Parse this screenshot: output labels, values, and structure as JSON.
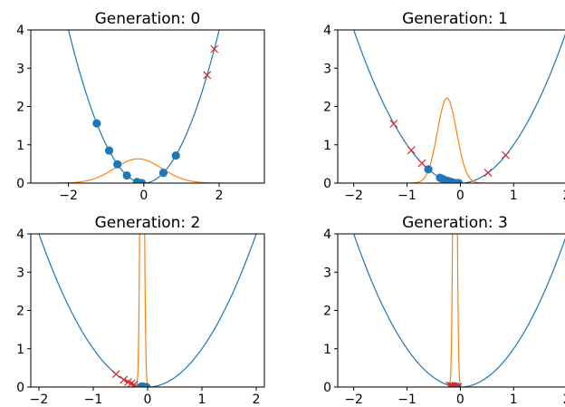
{
  "colors": {
    "parabola": "#1f77b4",
    "density": "#ff7f0e",
    "marker": "#d62728",
    "axes": "#000000",
    "background": "#ffffff"
  },
  "chart_data": [
    {
      "type": "line",
      "title": "Generation: 0",
      "xlim": [
        -3.0,
        3.2
      ],
      "ylim": [
        0,
        4
      ],
      "xticks": [
        -2,
        0,
        2
      ],
      "yticks": [
        0,
        1,
        2,
        3,
        4
      ],
      "curve": "y = x^2",
      "density": {
        "mean": -0.15,
        "std": 0.63
      },
      "selected_points": {
        "marker": "circle",
        "x": [
          -1.25,
          -0.92,
          -0.7,
          -0.45,
          -0.18,
          -0.05,
          0.52,
          0.85
        ],
        "y": [
          1.56,
          0.85,
          0.49,
          0.2,
          0.03,
          0.0,
          0.27,
          0.72
        ]
      },
      "rejected_points": {
        "marker": "x",
        "x": [
          1.68,
          1.87
        ],
        "y": [
          2.82,
          3.5
        ]
      },
      "grid": false
    },
    {
      "type": "line",
      "title": "Generation: 1",
      "xlim": [
        -2.3,
        2.1
      ],
      "ylim": [
        0,
        4
      ],
      "xticks": [
        -2,
        -1,
        0,
        1,
        2
      ],
      "yticks": [
        0,
        1,
        2,
        3,
        4
      ],
      "curve": "y = x^2",
      "density": {
        "mean": -0.25,
        "std": 0.18
      },
      "selected_points": {
        "marker": "circle",
        "x": [
          -0.6,
          -0.38,
          -0.32,
          -0.27,
          -0.22,
          -0.17,
          -0.12,
          -0.07,
          -0.03
        ],
        "y": [
          0.36,
          0.14,
          0.1,
          0.07,
          0.05,
          0.03,
          0.01,
          0.0,
          0.0
        ]
      },
      "rejected_points": {
        "marker": "x",
        "x": [
          -1.25,
          -0.92,
          -0.72,
          0.52,
          0.85
        ],
        "y": [
          1.55,
          0.86,
          0.52,
          0.27,
          0.73
        ]
      },
      "grid": false
    },
    {
      "type": "line",
      "title": "Generation: 2",
      "xlim": [
        -2.15,
        2.15
      ],
      "ylim": [
        0,
        4
      ],
      "xticks": [
        -2,
        -1,
        0,
        1,
        2
      ],
      "yticks": [
        0,
        1,
        2,
        3,
        4
      ],
      "curve": "y = x^2",
      "density": {
        "mean": -0.1,
        "std": 0.03
      },
      "selected_points": {
        "marker": "circle",
        "x": [
          -0.12,
          -0.1,
          -0.08,
          -0.06,
          -0.04,
          -0.02
        ],
        "y": [
          0.01,
          0.01,
          0.01,
          0.0,
          0.0,
          0.0
        ]
      },
      "rejected_points": {
        "marker": "x",
        "x": [
          -0.58,
          -0.44,
          -0.36,
          -0.3,
          -0.25
        ],
        "y": [
          0.34,
          0.19,
          0.13,
          0.09,
          0.06
        ]
      },
      "grid": false
    },
    {
      "type": "line",
      "title": "Generation: 3",
      "xlim": [
        -2.3,
        2.1
      ],
      "ylim": [
        0,
        4
      ],
      "xticks": [
        -2,
        -1,
        0,
        1,
        2
      ],
      "yticks": [
        0,
        1,
        2,
        3,
        4
      ],
      "curve": "y = x^2",
      "density": {
        "mean": -0.1,
        "std": 0.03
      },
      "selected_points": {
        "marker": "circle",
        "x": [
          -0.12,
          -0.09,
          -0.06
        ],
        "y": [
          0.01,
          0.01,
          0.0
        ]
      },
      "rejected_points": {
        "marker": "x",
        "x": [
          -0.2,
          -0.16,
          -0.13,
          -0.09,
          -0.04
        ],
        "y": [
          0.04,
          0.03,
          0.02,
          0.01,
          0.0
        ]
      },
      "grid": false
    }
  ]
}
